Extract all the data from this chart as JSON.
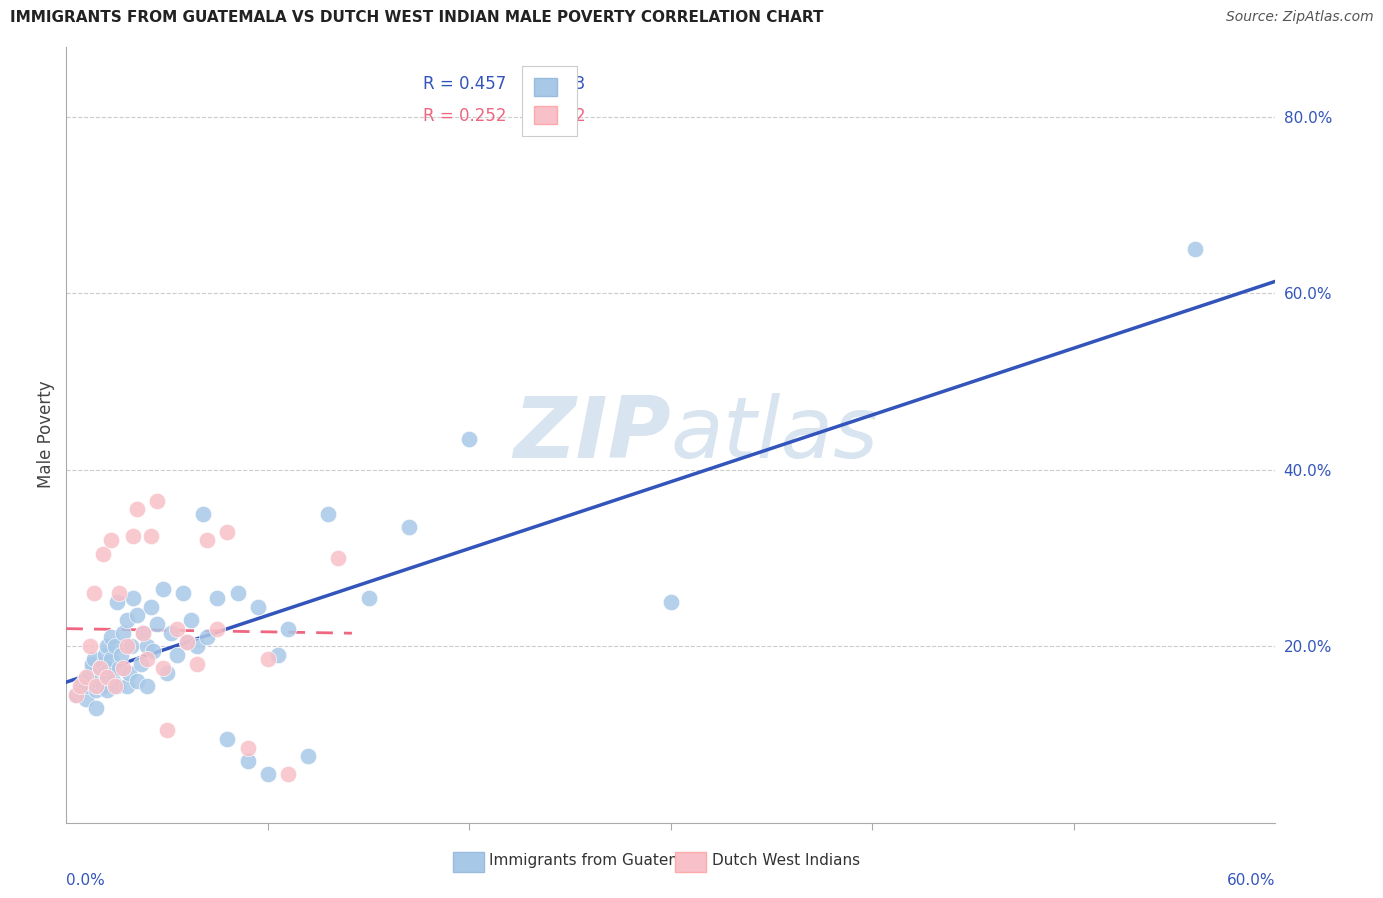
{
  "title": "IMMIGRANTS FROM GUATEMALA VS DUTCH WEST INDIAN MALE POVERTY CORRELATION CHART",
  "source": "Source: ZipAtlas.com",
  "ylabel": "Male Poverty",
  "xlim": [
    0.0,
    0.6
  ],
  "ylim": [
    0.0,
    0.88
  ],
  "ytick_values": [
    0.2,
    0.4,
    0.6,
    0.8
  ],
  "ytick_labels": [
    "20.0%",
    "40.0%",
    "60.0%",
    "80.0%"
  ],
  "xlabel_0": "0.0%",
  "xlabel_60": "60.0%",
  "legend_r1": "R = 0.457",
  "legend_n1": "N = 73",
  "legend_r2": "R = 0.252",
  "legend_n2": "N = 32",
  "color_blue_fill": "#A8C8E8",
  "color_pink_fill": "#F8C0C8",
  "color_blue_line": "#3355BB",
  "color_pink_line": "#EE6680",
  "color_grid": "#CCCCCC",
  "watermark_color": "#D8E4F0",
  "legend_label1": "Immigrants from Guatemala",
  "legend_label2": "Dutch West Indians",
  "guatemala_x": [
    0.005,
    0.007,
    0.008,
    0.009,
    0.01,
    0.01,
    0.011,
    0.012,
    0.013,
    0.013,
    0.014,
    0.015,
    0.015,
    0.016,
    0.016,
    0.017,
    0.017,
    0.018,
    0.018,
    0.019,
    0.019,
    0.02,
    0.02,
    0.02,
    0.021,
    0.022,
    0.022,
    0.023,
    0.024,
    0.025,
    0.025,
    0.026,
    0.027,
    0.028,
    0.03,
    0.03,
    0.031,
    0.032,
    0.033,
    0.035,
    0.035,
    0.037,
    0.038,
    0.04,
    0.04,
    0.042,
    0.043,
    0.045,
    0.048,
    0.05,
    0.052,
    0.055,
    0.058,
    0.06,
    0.062,
    0.065,
    0.068,
    0.07,
    0.075,
    0.08,
    0.085,
    0.09,
    0.095,
    0.1,
    0.105,
    0.11,
    0.12,
    0.13,
    0.15,
    0.17,
    0.2,
    0.3,
    0.56
  ],
  "guatemala_y": [
    0.145,
    0.15,
    0.155,
    0.16,
    0.14,
    0.155,
    0.165,
    0.17,
    0.175,
    0.18,
    0.185,
    0.13,
    0.15,
    0.155,
    0.16,
    0.165,
    0.175,
    0.155,
    0.18,
    0.17,
    0.19,
    0.15,
    0.165,
    0.2,
    0.175,
    0.185,
    0.21,
    0.16,
    0.2,
    0.155,
    0.25,
    0.175,
    0.19,
    0.215,
    0.155,
    0.23,
    0.17,
    0.2,
    0.255,
    0.16,
    0.235,
    0.18,
    0.215,
    0.155,
    0.2,
    0.245,
    0.195,
    0.225,
    0.265,
    0.17,
    0.215,
    0.19,
    0.26,
    0.205,
    0.23,
    0.2,
    0.35,
    0.21,
    0.255,
    0.095,
    0.26,
    0.07,
    0.245,
    0.055,
    0.19,
    0.22,
    0.075,
    0.35,
    0.255,
    0.335,
    0.435,
    0.25,
    0.65
  ],
  "dutch_x": [
    0.005,
    0.007,
    0.01,
    0.012,
    0.014,
    0.015,
    0.017,
    0.018,
    0.02,
    0.022,
    0.024,
    0.026,
    0.028,
    0.03,
    0.033,
    0.035,
    0.038,
    0.04,
    0.042,
    0.045,
    0.048,
    0.05,
    0.055,
    0.06,
    0.065,
    0.07,
    0.075,
    0.08,
    0.09,
    0.1,
    0.11,
    0.135
  ],
  "dutch_y": [
    0.145,
    0.155,
    0.165,
    0.2,
    0.26,
    0.155,
    0.175,
    0.305,
    0.165,
    0.32,
    0.155,
    0.26,
    0.175,
    0.2,
    0.325,
    0.355,
    0.215,
    0.185,
    0.325,
    0.365,
    0.175,
    0.105,
    0.22,
    0.205,
    0.18,
    0.32,
    0.22,
    0.33,
    0.085,
    0.185,
    0.055,
    0.3
  ]
}
